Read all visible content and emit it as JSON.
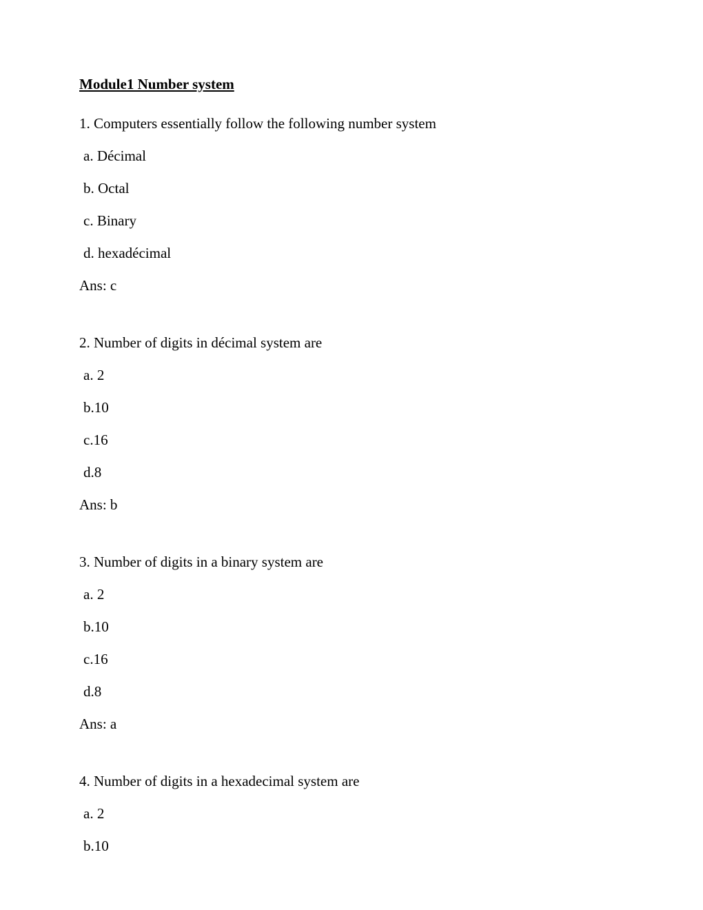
{
  "title": "Module1 Number system",
  "questions": [
    {
      "prompt": "1. Computers essentially follow the following number system",
      "options": [
        "a. Décimal",
        "b. Octal",
        "c. Binary",
        "d. hexadécimal"
      ],
      "answer": "Ans: c"
    },
    {
      "prompt": "2. Number of digits in décimal system are",
      "options": [
        "a. 2",
        "b.10",
        "c.16",
        "d.8"
      ],
      "answer": "Ans: b"
    },
    {
      "prompt": "3. Number of digits in a binary system are",
      "options": [
        "a. 2",
        "b.10",
        "c.16",
        "d.8"
      ],
      "answer": "Ans: a"
    },
    {
      "prompt": "4. Number of digits in a hexadecimal system are",
      "options": [
        "a. 2",
        "b.10"
      ],
      "answer": ""
    }
  ],
  "typography": {
    "font_family": "Times New Roman",
    "title_fontsize": 21,
    "body_fontsize": 21,
    "text_color": "#000000",
    "background_color": "#ffffff"
  }
}
